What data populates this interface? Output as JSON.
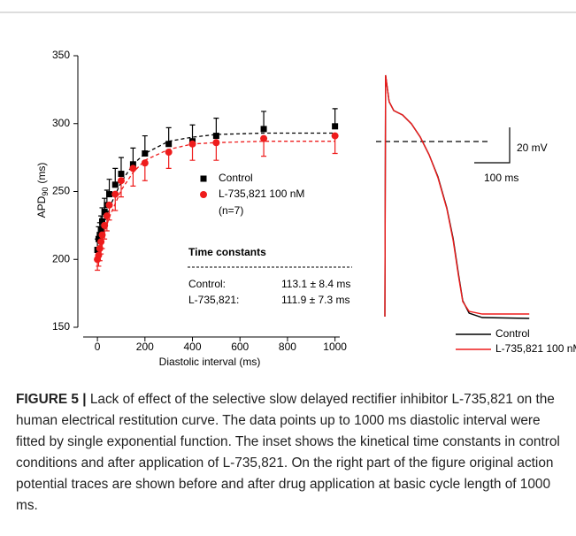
{
  "chart_data": [
    {
      "type": "scatter",
      "xlabel": "Diastolic interval (ms)",
      "ylabel_main": "APD",
      "ylabel_sub": "90",
      "ylabel_unit": "(ms)",
      "x": [
        0,
        5,
        10,
        15,
        20,
        30,
        40,
        50,
        75,
        100,
        150,
        200,
        300,
        400,
        500,
        700,
        1000
      ],
      "series": [
        {
          "name": "Control",
          "color": "#000000",
          "marker": "square",
          "values": [
            207,
            215,
            218,
            222,
            228,
            235,
            240,
            248,
            255,
            263,
            270,
            278,
            285,
            287,
            291,
            296,
            298
          ],
          "errors": [
            8,
            9,
            9,
            10,
            10,
            10,
            11,
            11,
            12,
            12,
            12,
            13,
            12,
            12,
            13,
            13,
            13
          ],
          "error_side": "up"
        },
        {
          "name": "L-735,821 100 nM",
          "color": "#ee1c1c",
          "marker": "circle",
          "values": [
            200,
            203,
            208,
            213,
            218,
            225,
            232,
            240,
            248,
            258,
            267,
            271,
            279,
            285,
            286,
            289,
            291
          ],
          "errors": [
            8,
            8,
            9,
            9,
            10,
            10,
            11,
            11,
            12,
            12,
            13,
            13,
            12,
            12,
            13,
            13,
            13
          ],
          "error_side": "down"
        }
      ],
      "fit_x": [
        0,
        25,
        50,
        100,
        150,
        200,
        300,
        400,
        500,
        700,
        1000
      ],
      "fits": [
        {
          "color": "#000000",
          "values": [
            207,
            224,
            238,
            257,
            270,
            278,
            287,
            290,
            292,
            293,
            293
          ]
        },
        {
          "color": "#ee1c1c",
          "values": [
            200,
            217,
            231,
            251,
            264,
            273,
            281,
            285,
            286,
            287,
            287
          ]
        }
      ],
      "legend_note": "(n=7)",
      "inset_title": "Time constants",
      "inset_rows": [
        [
          "Control:",
          "113.1 ± 8.4 ms"
        ],
        [
          "L-735,821:",
          "111.9 ± 7.3 ms"
        ]
      ],
      "xlim": [
        -60,
        1020
      ],
      "xticks": [
        0,
        200,
        400,
        600,
        800,
        1000
      ],
      "ylim": [
        150,
        350
      ],
      "yticks": [
        150,
        200,
        250,
        300,
        350
      ]
    },
    {
      "type": "line",
      "x": [
        0,
        2,
        12,
        25,
        50,
        75,
        100,
        125,
        150,
        175,
        193,
        208,
        220,
        238,
        275,
        408
      ],
      "series": [
        {
          "name": "Control",
          "color": "#000000",
          "values": [
            -85,
            51.5,
            36.5,
            31.5,
            29,
            24,
            16.5,
            6.5,
            -6,
            -23.5,
            -41,
            -61,
            -76,
            -83,
            -85.5,
            -86
          ]
        },
        {
          "name": "L-735,821 100 nM",
          "color": "#ee1c1c",
          "values": [
            -85,
            51.5,
            36.5,
            31.5,
            29,
            24,
            16.5,
            6.5,
            -6.5,
            -24,
            -42,
            -62,
            -76.5,
            -82,
            -83.5,
            -83.5
          ]
        }
      ],
      "reference_line": 14,
      "scale_bar": {
        "x": 100,
        "y": 20,
        "x_label": "100 ms",
        "y_label": "20 mV"
      },
      "xlim": [
        -10,
        410
      ],
      "ylim": [
        -95,
        60
      ]
    }
  ],
  "caption": {
    "label": "FIGURE 5 |",
    "text": "Lack of effect of the selective slow delayed rectifier inhibitor L-735,821 on the human electrical restitution curve. The data points up to 1000 ms diastolic interval were fitted by single exponential function. The inset shows the kinetical time constants in control conditions and after application of L-735,821. On the right part of the figure original action potential traces are shown before and after drug application at basic cycle length of 1000 ms."
  }
}
